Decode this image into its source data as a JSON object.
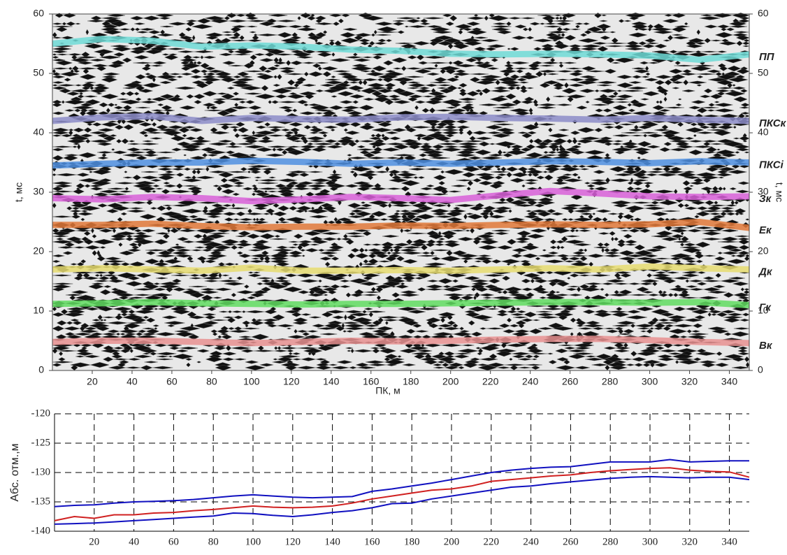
{
  "chart_data": [
    {
      "type": "seismic",
      "x_label": "ПК, м",
      "y_label": "t, мс",
      "y2_label": "t, мс",
      "xlim": [
        0,
        350
      ],
      "xticks": [
        20,
        40,
        60,
        80,
        100,
        120,
        140,
        160,
        180,
        200,
        220,
        240,
        260,
        280,
        300,
        320,
        340
      ],
      "ylim": [
        0,
        60
      ],
      "yticks": [
        0,
        10,
        20,
        30,
        40,
        50,
        60
      ],
      "y2lim": [
        0,
        60
      ],
      "y2ticks": [
        0,
        10,
        20,
        30,
        40,
        50,
        60
      ],
      "x": [
        0,
        25,
        50,
        75,
        100,
        125,
        150,
        175,
        200,
        225,
        250,
        275,
        300,
        325,
        350
      ],
      "series": [
        {
          "name": "ПП",
          "color": "#6fdad6",
          "values": [
            55,
            55.8,
            55.5,
            54.5,
            54.7,
            54.5,
            54,
            53.8,
            53.3,
            53.2,
            53.3,
            53.2,
            53,
            52.3,
            53.2
          ]
        },
        {
          "name": "ПКСк",
          "color": "#8c8cc8",
          "values": [
            42,
            42.6,
            42.8,
            42,
            42.5,
            42.3,
            42.2,
            42.6,
            42.7,
            42.5,
            42.4,
            42.2,
            42.5,
            42.2,
            42
          ]
        },
        {
          "name": "ПКСі",
          "color": "#4f8fe0",
          "values": [
            34.5,
            34.8,
            35,
            35,
            35.3,
            35.1,
            34.8,
            35,
            34.8,
            35,
            35.2,
            35.1,
            34.9,
            35.2,
            35
          ]
        },
        {
          "name": "Зк",
          "color": "#d860d8",
          "values": [
            29,
            28.8,
            29.2,
            29,
            28.5,
            28.8,
            29.2,
            29,
            28.7,
            29.5,
            30.2,
            29.8,
            29.3,
            29.2,
            29.3
          ]
        },
        {
          "name": "Ек",
          "color": "#e07838",
          "values": [
            24.5,
            24.5,
            24.7,
            24.3,
            24.1,
            24.2,
            24.2,
            24.4,
            24.3,
            24.5,
            24.6,
            24.5,
            24.6,
            25,
            24
          ]
        },
        {
          "name": "Дк",
          "color": "#e6dc70",
          "values": [
            17,
            17.2,
            17,
            16.8,
            17.3,
            16.8,
            16.8,
            16.9,
            16.8,
            17,
            17.2,
            17,
            17.5,
            17.2,
            17
          ]
        },
        {
          "name": "Гк",
          "color": "#60dc60",
          "values": [
            11.2,
            11.3,
            11.5,
            11.3,
            11.2,
            11.1,
            11.2,
            11.2,
            11.3,
            11.4,
            11.5,
            11.5,
            11.4,
            11.5,
            11
          ]
        },
        {
          "name": "Вк",
          "color": "#e89090",
          "values": [
            4.8,
            5,
            5,
            4.8,
            4.6,
            4.8,
            5,
            4.9,
            5,
            5.2,
            5.3,
            5.3,
            5.1,
            4.8,
            4.6
          ]
        }
      ]
    },
    {
      "type": "line",
      "y_label": "Абс. отм.,м",
      "grid": true,
      "xlim": [
        0,
        350
      ],
      "xticks": [
        20,
        40,
        60,
        80,
        100,
        120,
        140,
        160,
        180,
        200,
        220,
        240,
        260,
        280,
        300,
        320,
        340
      ],
      "ylim": [
        -140,
        -120
      ],
      "yticks": [
        -140,
        -135,
        -130,
        -125,
        -120
      ],
      "x": [
        0,
        10,
        20,
        30,
        40,
        50,
        60,
        70,
        80,
        90,
        100,
        110,
        120,
        130,
        140,
        150,
        160,
        170,
        180,
        190,
        200,
        210,
        220,
        230,
        240,
        250,
        260,
        270,
        280,
        290,
        300,
        310,
        320,
        330,
        340,
        350
      ],
      "series": [
        {
          "color": "#1010c0",
          "values": [
            -135.8,
            -135.6,
            -135.5,
            -135.2,
            -135.0,
            -134.9,
            -134.8,
            -134.6,
            -134.3,
            -134.0,
            -133.8,
            -134.0,
            -134.2,
            -134.3,
            -134.2,
            -134.1,
            -133.2,
            -132.8,
            -132.3,
            -131.8,
            -131.2,
            -130.6,
            -130.0,
            -129.6,
            -129.3,
            -129.1,
            -129.0,
            -128.6,
            -128.2,
            -128.2,
            -128.2,
            -127.8,
            -128.2,
            -128.1,
            -128.0,
            -128.0
          ]
        },
        {
          "color": "#d02020",
          "values": [
            -138.2,
            -137.5,
            -137.8,
            -137.2,
            -137.2,
            -136.9,
            -136.8,
            -136.5,
            -136.3,
            -136.0,
            -135.7,
            -135.9,
            -136.0,
            -135.9,
            -135.7,
            -135.2,
            -134.5,
            -134.0,
            -133.5,
            -133.0,
            -132.8,
            -132.3,
            -131.5,
            -131.2,
            -130.9,
            -130.6,
            -130.4,
            -130.0,
            -129.7,
            -129.5,
            -129.3,
            -129.2,
            -129.6,
            -129.8,
            -129.9,
            -130.8
          ]
        },
        {
          "color": "#1010c0",
          "values": [
            -138.8,
            -138.7,
            -138.6,
            -138.4,
            -138.2,
            -138.0,
            -137.8,
            -137.6,
            -137.4,
            -136.9,
            -137.0,
            -137.3,
            -137.5,
            -137.2,
            -136.8,
            -136.5,
            -136.0,
            -135.3,
            -135.2,
            -134.5,
            -134.0,
            -133.5,
            -133.0,
            -132.5,
            -132.3,
            -131.9,
            -131.6,
            -131.3,
            -131.0,
            -130.8,
            -130.7,
            -130.8,
            -130.9,
            -130.8,
            -130.8,
            -131.2
          ]
        }
      ]
    }
  ]
}
